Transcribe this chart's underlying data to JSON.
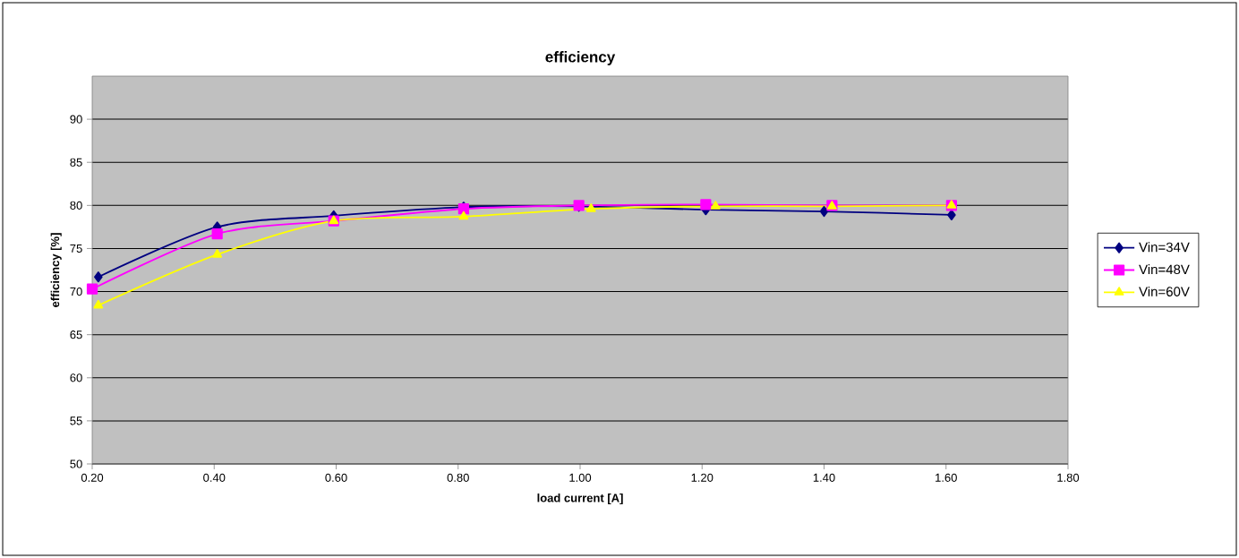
{
  "chart_data": {
    "type": "line",
    "title": "efficiency",
    "xlabel": "load current [A]",
    "ylabel": "efficiency [%]",
    "xlim": [
      0.2,
      1.8
    ],
    "xticks": [
      {
        "value": 0.2,
        "label": "0.20"
      },
      {
        "value": 0.4,
        "label": "0.40"
      },
      {
        "value": 0.6,
        "label": "0.60"
      },
      {
        "value": 0.8,
        "label": "0.80"
      },
      {
        "value": 1.0,
        "label": "1.00"
      },
      {
        "value": 1.2,
        "label": "1.20"
      },
      {
        "value": 1.4,
        "label": "1.40"
      },
      {
        "value": 1.6,
        "label": "1.60"
      },
      {
        "value": 1.8,
        "label": "1.80"
      }
    ],
    "ylim": [
      50,
      95
    ],
    "yticks": [
      50,
      55,
      60,
      65,
      70,
      75,
      80,
      85,
      90
    ],
    "grid": "y",
    "legend": "right",
    "line_style": "solid",
    "series": [
      {
        "name": "Vin=34V",
        "color": "#000080",
        "marker": "diamond",
        "x": [
          0.21,
          0.405,
          0.596,
          0.809,
          0.998,
          1.206,
          1.4,
          1.609
        ],
        "values": [
          71.7,
          77.5,
          78.8,
          79.8,
          79.9,
          79.5,
          79.3,
          78.9
        ]
      },
      {
        "name": "Vin=48V",
        "color": "#ff00ff",
        "marker": "square",
        "x": [
          0.2,
          0.405,
          0.596,
          0.809,
          0.998,
          1.206,
          1.413,
          1.609
        ],
        "values": [
          70.3,
          76.7,
          78.2,
          79.6,
          80.0,
          80.1,
          80.0,
          80.0
        ]
      },
      {
        "name": "Vin=60V",
        "color": "#ffff00",
        "marker": "triangle",
        "x": [
          0.21,
          0.405,
          0.596,
          0.809,
          1.018,
          1.222,
          1.413,
          1.609
        ],
        "values": [
          68.4,
          74.3,
          78.2,
          78.7,
          79.6,
          79.9,
          79.9,
          80.0
        ]
      }
    ]
  }
}
